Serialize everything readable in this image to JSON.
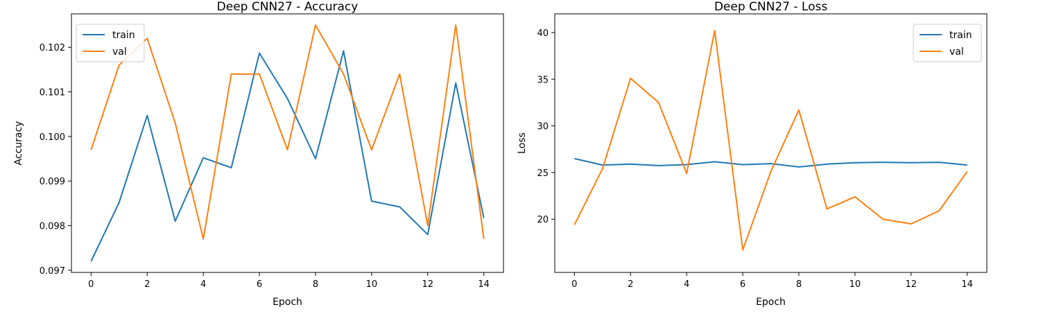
{
  "chart_data": [
    {
      "type": "line",
      "title": "Deep CNN27 - Accuracy",
      "xlabel": "Epoch",
      "ylabel": "Accuracy",
      "xlim": [
        -0.7,
        14.7
      ],
      "ylim": [
        0.09695,
        0.10275
      ],
      "xticks": [
        0,
        2,
        4,
        6,
        8,
        10,
        12,
        14
      ],
      "yticks": [
        0.097,
        0.098,
        0.099,
        0.1,
        0.101,
        0.102
      ],
      "ytick_labels": [
        "0.097",
        "0.098",
        "0.099",
        "0.100",
        "0.101",
        "0.102"
      ],
      "legend_position": "upper-left",
      "grid": false,
      "x": [
        0,
        1,
        2,
        3,
        4,
        5,
        6,
        7,
        8,
        9,
        10,
        11,
        12,
        13,
        14
      ],
      "series": [
        {
          "name": "train",
          "color": "#1f77b4",
          "values": [
            0.0972,
            0.09852,
            0.10047,
            0.0981,
            0.09952,
            0.0993,
            0.10187,
            0.10085,
            0.0995,
            0.10192,
            0.09855,
            0.09842,
            0.0978,
            0.1012,
            0.09817
          ]
        },
        {
          "name": "val",
          "color": "#ff7f0e",
          "values": [
            0.0997,
            0.1016,
            0.1022,
            0.1003,
            0.0977,
            0.1014,
            0.1014,
            0.0997,
            0.1025,
            0.1014,
            0.0997,
            0.1014,
            0.098,
            0.1025,
            0.0977
          ]
        }
      ]
    },
    {
      "type": "line",
      "title": "Deep CNN27 - Loss",
      "xlabel": "Epoch",
      "ylabel": "Loss",
      "xlim": [
        -0.7,
        14.7
      ],
      "ylim": [
        14.3,
        42.0
      ],
      "xticks": [
        0,
        2,
        4,
        6,
        8,
        10,
        12,
        14
      ],
      "yticks": [
        20,
        25,
        30,
        35,
        40
      ],
      "ytick_labels": [
        "20",
        "25",
        "30",
        "35",
        "40"
      ],
      "legend_position": "upper-right",
      "grid": false,
      "x": [
        0,
        1,
        2,
        3,
        4,
        5,
        6,
        7,
        8,
        9,
        10,
        11,
        12,
        13,
        14
      ],
      "series": [
        {
          "name": "train",
          "color": "#1f77b4",
          "values": [
            26.5,
            25.8,
            25.9,
            25.75,
            25.85,
            26.15,
            25.85,
            25.95,
            25.6,
            25.9,
            26.05,
            26.1,
            26.05,
            26.1,
            25.8
          ]
        },
        {
          "name": "val",
          "color": "#ff7f0e",
          "values": [
            19.4,
            25.4,
            35.1,
            32.5,
            24.9,
            40.2,
            16.7,
            25.1,
            31.7,
            21.1,
            22.4,
            20.0,
            19.5,
            20.9,
            25.1
          ]
        }
      ]
    }
  ]
}
